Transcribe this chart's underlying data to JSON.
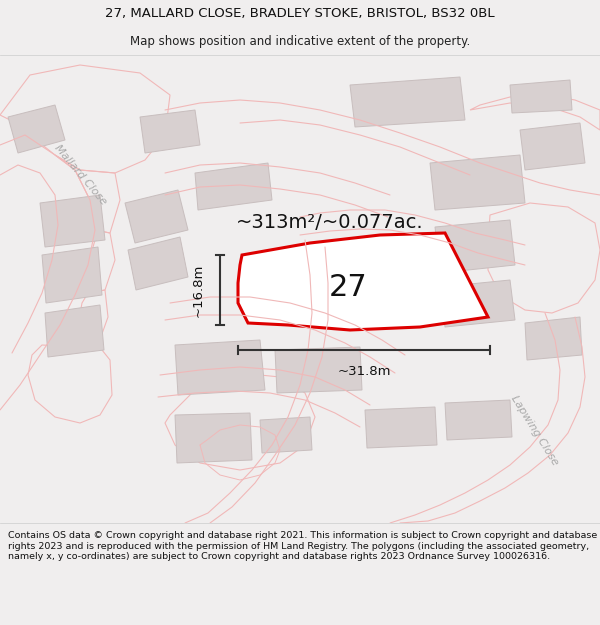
{
  "title_line1": "27, MALLARD CLOSE, BRADLEY STOKE, BRISTOL, BS32 0BL",
  "title_line2": "Map shows position and indicative extent of the property.",
  "footer_text": "Contains OS data © Crown copyright and database right 2021. This information is subject to Crown copyright and database rights 2023 and is reproduced with the permission of HM Land Registry. The polygons (including the associated geometry, namely x, y co-ordinates) are subject to Crown copyright and database rights 2023 Ordnance Survey 100026316.",
  "area_text": "~313m²/~0.077ac.",
  "number_text": "27",
  "dim_width": "~31.8m",
  "dim_height": "~16.8m",
  "road_label_left": "Mallard Close",
  "road_label_right": "Lapwing Close",
  "title_fontsize": 9.5,
  "subtitle_fontsize": 8.5,
  "footer_fontsize": 6.8,
  "map_bg": "#ffffff",
  "page_bg": "#f0eeee",
  "road_color": "#f0b8b8",
  "road_lw": 0.8,
  "building_edge": "#c8bebe",
  "building_fill": "#d8d0d0",
  "plot_color": "#dd0000",
  "plot_fill": "#ffffff",
  "plot_lw": 2.2,
  "dim_color": "#333333",
  "label_color": "#aaaaaa",
  "area_fontsize": 14,
  "number_fontsize": 22,
  "dim_fontsize": 9.5,
  "road_label_fontsize": 8
}
